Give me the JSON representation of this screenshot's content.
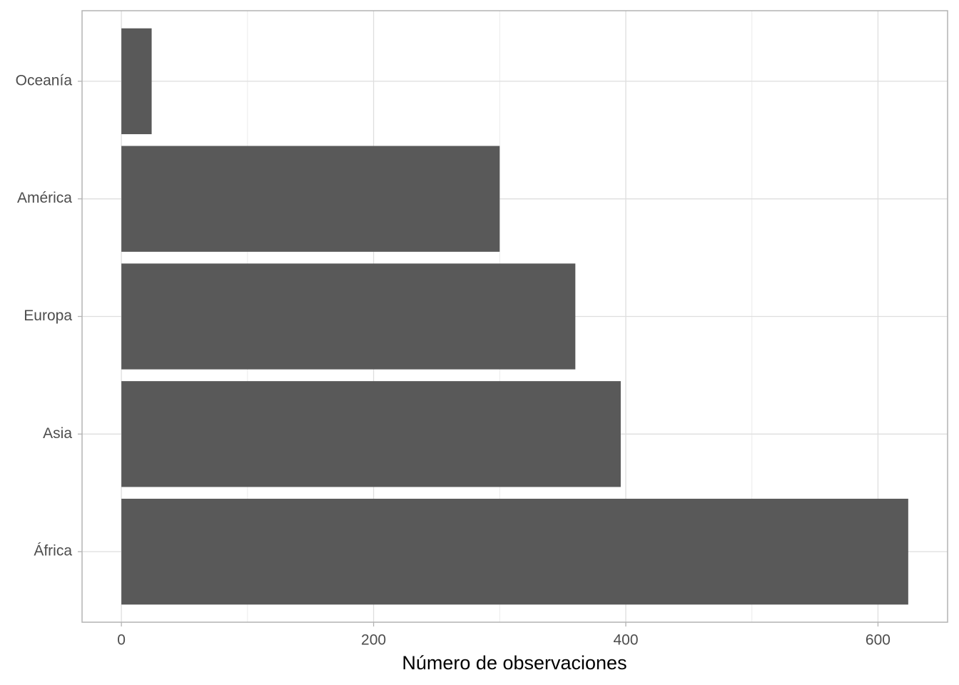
{
  "chart_data": {
    "type": "barh",
    "categories": [
      "África",
      "Asia",
      "Europa",
      "América",
      "Oceanía"
    ],
    "values": [
      624,
      396,
      360,
      300,
      24
    ],
    "color": "#595959",
    "x_label": "Número de observaciones",
    "xlim": [
      -31.2,
      655.2
    ],
    "xticks": [
      0,
      200,
      400,
      600
    ],
    "x_minor_ticks": [
      100,
      300,
      500
    ],
    "grid": true
  }
}
